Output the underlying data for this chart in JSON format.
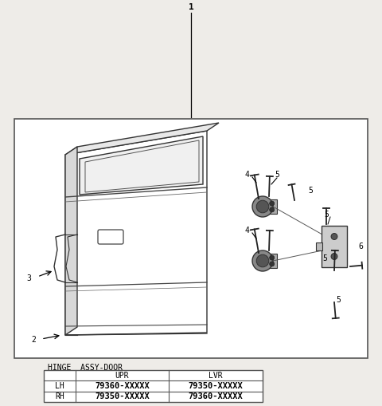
{
  "bg_color": "#eeece8",
  "box_color": "white",
  "line_color": "#333333",
  "table_title": "HINGE  ASSY-DOOR",
  "table_headers": [
    "",
    "UPR",
    "LVR"
  ],
  "table_rows": [
    [
      "LH",
      "79360-XXXXX",
      "79350-XXXXX"
    ],
    [
      "RH",
      "79350-XXXXX",
      "79360-XXXXX"
    ]
  ],
  "label_1": "1",
  "label_2": "2",
  "label_3": "3",
  "label_4": "4",
  "label_5": "5",
  "label_6": "6"
}
